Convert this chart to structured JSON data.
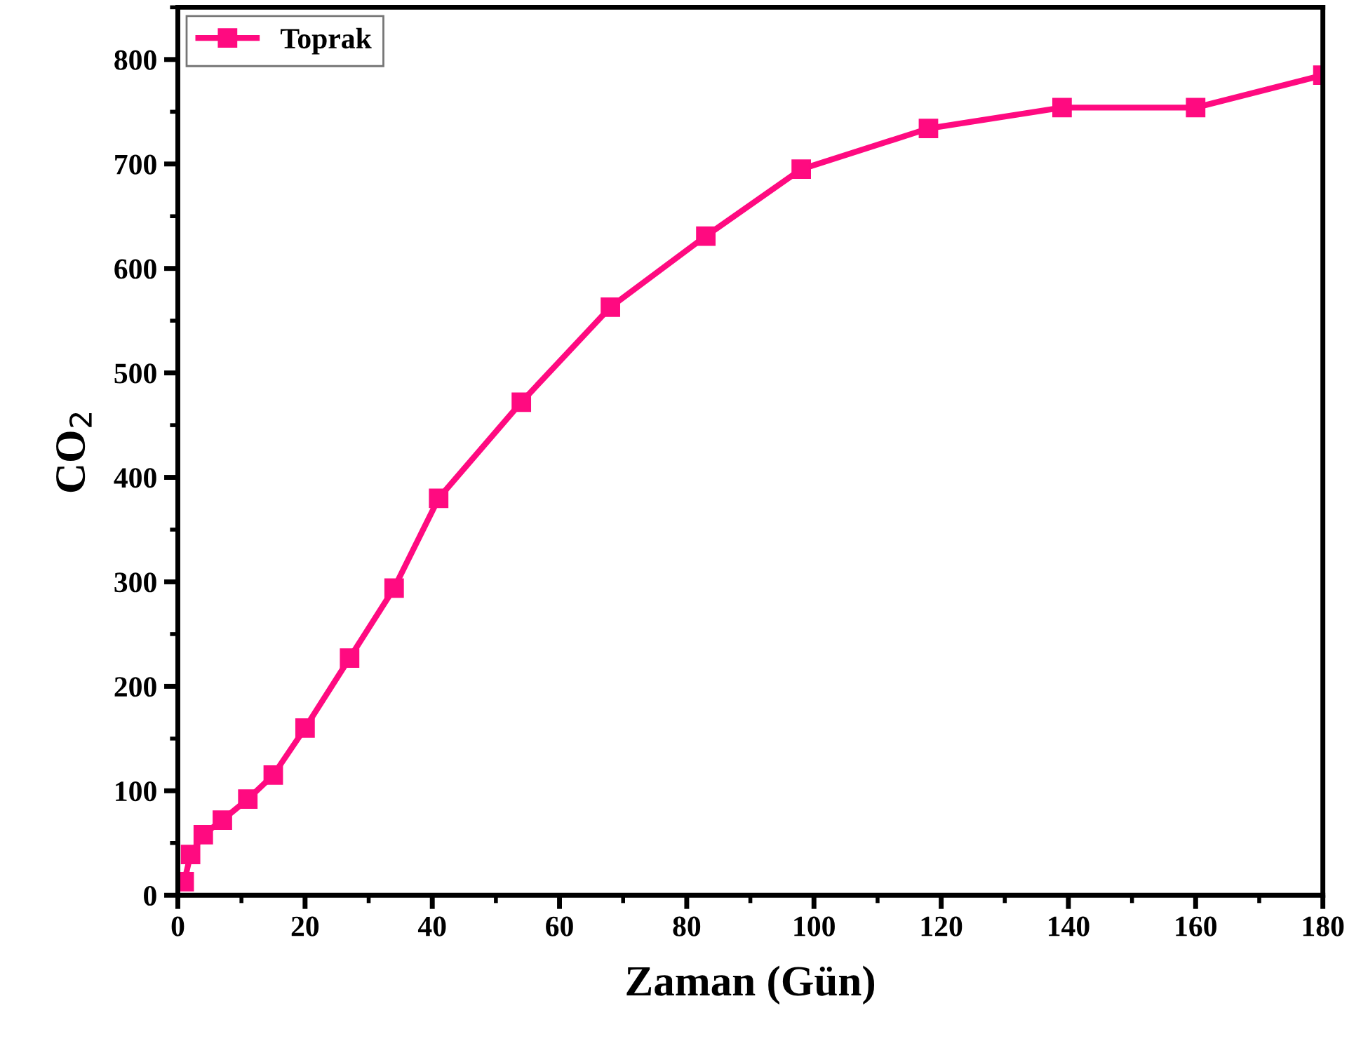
{
  "chart_data": {
    "type": "line",
    "xlabel": "Zaman (Gün)",
    "ylabel": "CO$_{2}$",
    "xlim": [
      0,
      180
    ],
    "ylim": [
      0,
      850
    ],
    "xticks": [
      0,
      20,
      40,
      60,
      80,
      100,
      120,
      140,
      160,
      180
    ],
    "yticks": [
      0,
      100,
      200,
      300,
      400,
      500,
      600,
      700,
      800
    ],
    "marker": "square",
    "line_style": "solid",
    "grid": false,
    "legend": "top left",
    "series": [
      {
        "name": "Toprak",
        "color": "#ff0a80",
        "x": [
          1,
          2,
          4,
          7,
          11,
          15,
          20,
          27,
          34,
          41,
          54,
          68,
          83,
          98,
          118,
          139,
          160,
          180
        ],
        "values": [
          13,
          39,
          58,
          72,
          92,
          115,
          160,
          227,
          294,
          380,
          472,
          563,
          631,
          695,
          734,
          754,
          754,
          785
        ]
      }
    ]
  }
}
